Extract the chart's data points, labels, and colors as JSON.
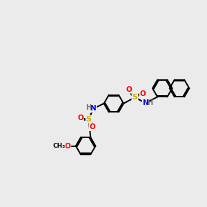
{
  "background_color": "#ebebeb",
  "bond_color": "#000000",
  "atom_colors": {
    "N": "#0000ff",
    "S": "#ccaa00",
    "O": "#ff0000",
    "C": "#000000",
    "H": "#777777"
  },
  "ring_r": 0.48,
  "lw": 1.5
}
